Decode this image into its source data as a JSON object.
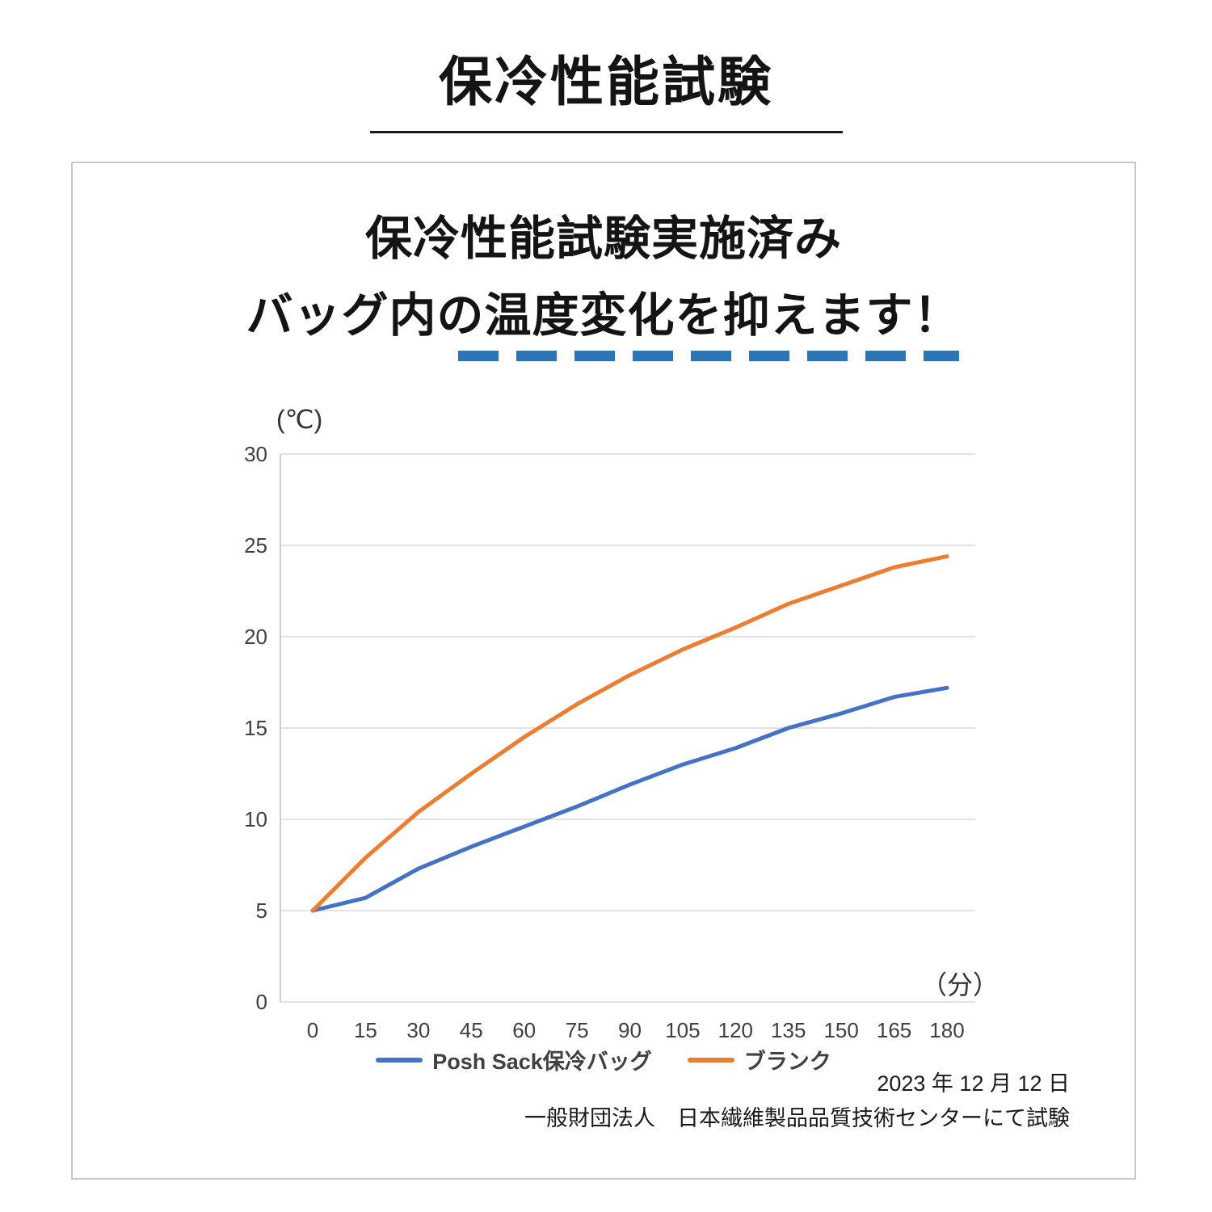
{
  "page": {
    "title": "保冷性能試験"
  },
  "panel": {
    "heading_line1": "保冷性能試験実施済み",
    "heading_line2": "バッグ内の温度変化を抑えます！",
    "date_line": "2023 年 12 月 12 日",
    "org_line": "一般財団法人　日本繊維製品品質技術センターにて試験"
  },
  "colors": {
    "accent_dash": "#2e75b6",
    "series_blue": "#4472C4",
    "series_orange": "#ED7D31",
    "gridline": "#d9d9d9"
  },
  "chart_data": {
    "type": "line",
    "x": [
      0,
      15,
      30,
      45,
      60,
      75,
      90,
      105,
      120,
      135,
      150,
      165,
      180
    ],
    "series": [
      {
        "name": "Posh Sack保冷バッグ",
        "color": "#4472C4",
        "values": [
          5.0,
          5.7,
          7.3,
          8.5,
          9.6,
          10.7,
          11.9,
          13.0,
          13.9,
          15.0,
          15.8,
          16.7,
          17.2
        ]
      },
      {
        "name": "ブランク",
        "color": "#ED7D31",
        "values": [
          5.0,
          7.9,
          10.4,
          12.5,
          14.5,
          16.3,
          17.9,
          19.3,
          20.5,
          21.8,
          22.8,
          23.8,
          24.4
        ]
      }
    ],
    "y_axis_label": "(℃)",
    "x_axis_label": "（分）",
    "ylim": [
      0,
      30
    ],
    "y_ticks": [
      0,
      5,
      10,
      15,
      20,
      25,
      30
    ],
    "grid": true,
    "legend_position": "bottom"
  }
}
